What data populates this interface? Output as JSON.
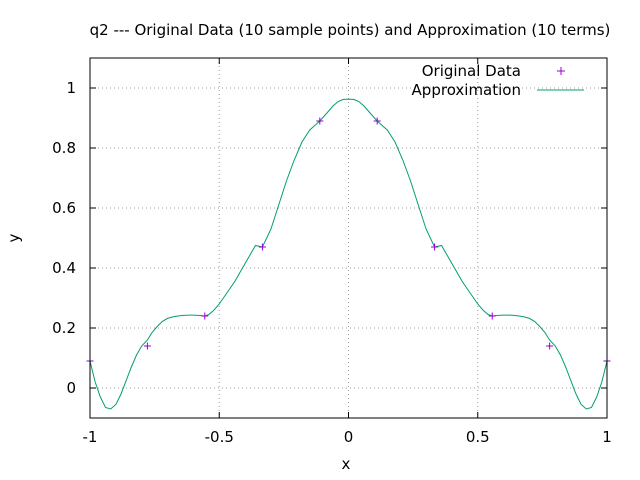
{
  "chart_data": {
    "type": "line",
    "title": "q2 --- Original Data (10 sample points) and Approximation (10 terms)",
    "xlabel": "x",
    "ylabel": "y",
    "xlim": [
      -1,
      1
    ],
    "ylim": [
      -0.1,
      1.1
    ],
    "xticks": [
      -1,
      -0.5,
      0,
      0.5,
      1
    ],
    "xtick_labels": [
      "-1",
      "-0.5",
      "0",
      "0.5",
      "1"
    ],
    "yticks": [
      0,
      0.2,
      0.4,
      0.6,
      0.8,
      1
    ],
    "ytick_labels": [
      "0",
      "0.2",
      "0.4",
      "0.6",
      "0.8",
      "1"
    ],
    "grid": true,
    "legend_position": "top-right",
    "series": [
      {
        "name": "Original Data",
        "style": "points",
        "marker": "+",
        "color": "#9400d3",
        "x": [
          -1,
          -0.778,
          -0.556,
          -0.333,
          -0.111,
          0.111,
          0.333,
          0.556,
          0.778,
          1
        ],
        "y": [
          0.09,
          0.14,
          0.24,
          0.47,
          0.89,
          0.89,
          0.47,
          0.24,
          0.14,
          0.09
        ]
      },
      {
        "name": "Approximation",
        "style": "line",
        "color": "#009e73",
        "x": [
          -1,
          -0.98,
          -0.96,
          -0.94,
          -0.92,
          -0.9,
          -0.88,
          -0.86,
          -0.84,
          -0.82,
          -0.8,
          -0.778,
          -0.76,
          -0.74,
          -0.72,
          -0.7,
          -0.68,
          -0.66,
          -0.64,
          -0.62,
          -0.6,
          -0.58,
          -0.556,
          -0.54,
          -0.52,
          -0.5,
          -0.48,
          -0.46,
          -0.44,
          -0.42,
          -0.4,
          -0.38,
          -0.36,
          -0.333,
          -0.3,
          -0.27,
          -0.24,
          -0.21,
          -0.18,
          -0.15,
          -0.111,
          -0.08,
          -0.06,
          -0.04,
          -0.02,
          0,
          0.02,
          0.04,
          0.06,
          0.08,
          0.111,
          0.15,
          0.18,
          0.21,
          0.24,
          0.27,
          0.3,
          0.333,
          0.36,
          0.38,
          0.4,
          0.42,
          0.44,
          0.46,
          0.48,
          0.5,
          0.52,
          0.54,
          0.556,
          0.58,
          0.6,
          0.62,
          0.64,
          0.66,
          0.68,
          0.7,
          0.72,
          0.74,
          0.76,
          0.778,
          0.8,
          0.82,
          0.84,
          0.86,
          0.88,
          0.9,
          0.92,
          0.94,
          0.96,
          0.98,
          1
        ],
        "y": [
          0.09,
          0.02,
          -0.03,
          -0.065,
          -0.07,
          -0.055,
          -0.02,
          0.025,
          0.07,
          0.11,
          0.14,
          0.16,
          0.185,
          0.205,
          0.222,
          0.232,
          0.237,
          0.24,
          0.242,
          0.243,
          0.243,
          0.242,
          0.24,
          0.245,
          0.26,
          0.28,
          0.305,
          0.33,
          0.355,
          0.385,
          0.415,
          0.445,
          0.475,
          0.47,
          0.53,
          0.61,
          0.69,
          0.76,
          0.82,
          0.86,
          0.89,
          0.92,
          0.94,
          0.955,
          0.962,
          0.963,
          0.962,
          0.955,
          0.94,
          0.92,
          0.89,
          0.86,
          0.82,
          0.76,
          0.69,
          0.61,
          0.53,
          0.47,
          0.475,
          0.445,
          0.415,
          0.385,
          0.355,
          0.33,
          0.305,
          0.28,
          0.26,
          0.245,
          0.24,
          0.242,
          0.243,
          0.243,
          0.242,
          0.24,
          0.237,
          0.232,
          0.222,
          0.205,
          0.185,
          0.16,
          0.14,
          0.11,
          0.07,
          0.025,
          -0.02,
          -0.055,
          -0.07,
          -0.065,
          -0.03,
          0.02,
          0.09
        ]
      }
    ]
  }
}
